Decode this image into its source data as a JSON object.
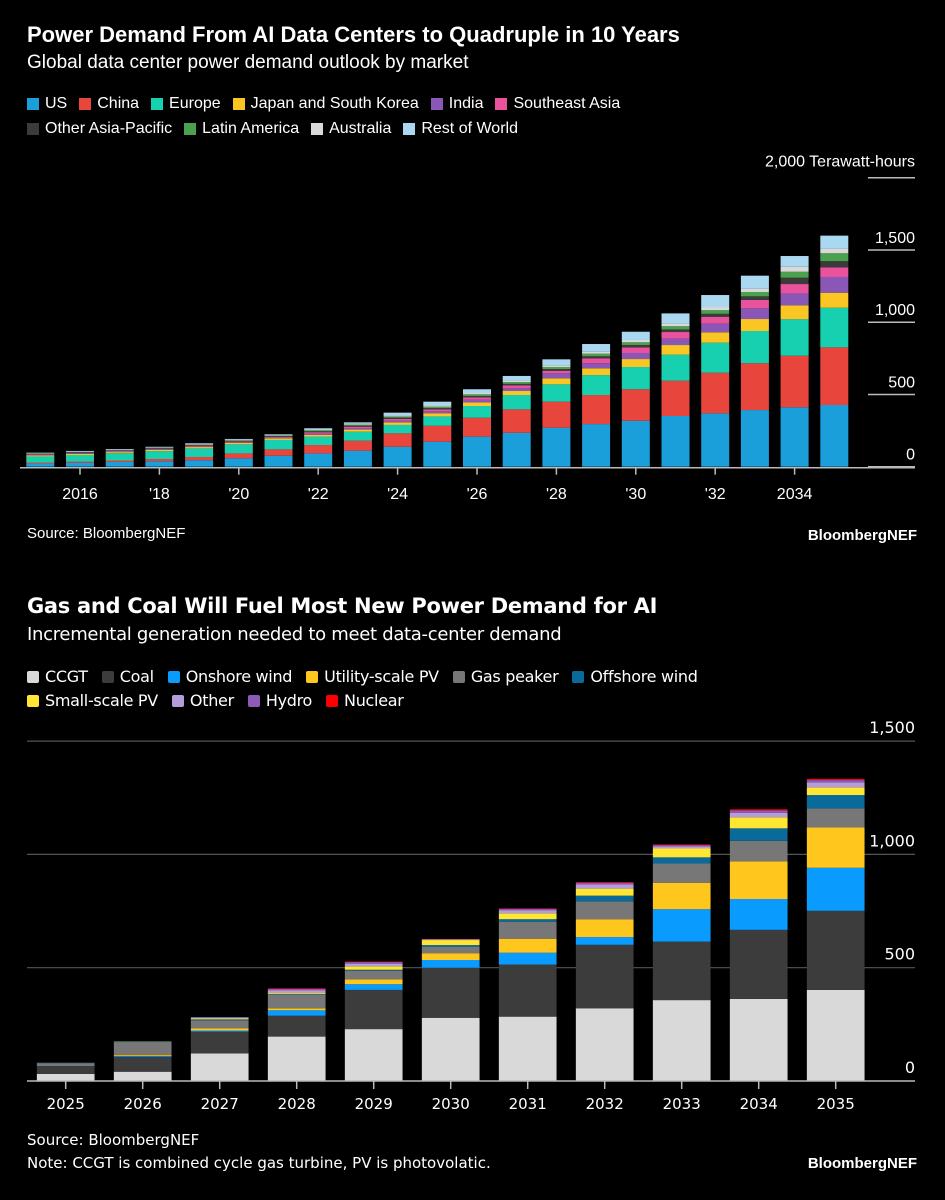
{
  "chart_data": [
    {
      "type": "bar",
      "stacked": true,
      "title": "Power Demand From AI Data Centers to Quadruple in 10 Years",
      "subtitle": "Global data center power demand outlook by market",
      "ylabel": "2,000 Terawatt-hours",
      "ylim": [
        0,
        2000
      ],
      "yticks": [
        "0",
        "500",
        "1,000",
        "1,500"
      ],
      "xticks": [
        "2016",
        "'18",
        "'20",
        "'22",
        "'24",
        "'26",
        "'28",
        "'30",
        "'32",
        "2034"
      ],
      "grid": false,
      "legend_position": "top",
      "categories": [
        2015,
        2016,
        2017,
        2018,
        2019,
        2020,
        2021,
        2022,
        2023,
        2024,
        2025,
        2026,
        2027,
        2028,
        2029,
        2030,
        2031,
        2032,
        2033,
        2034,
        2035
      ],
      "series": [
        {
          "name": "US",
          "color": "#1a9fdb",
          "values": [
            22,
            28,
            33,
            38,
            45,
            58,
            76,
            92,
            111,
            138,
            173,
            208,
            235,
            270,
            295,
            318,
            351,
            369,
            392,
            411,
            427
          ]
        },
        {
          "name": "China",
          "color": "#e8453c",
          "values": [
            7,
            8,
            10,
            15,
            22,
            34,
            44,
            58,
            69,
            93,
            110,
            131,
            162,
            180,
            201,
            218,
            244,
            281,
            324,
            357,
            399
          ]
        },
        {
          "name": "Europe",
          "color": "#17d0b0",
          "values": [
            42,
            45,
            50,
            55,
            60,
            63,
            65,
            58,
            62,
            58,
            65,
            81,
            99,
            120,
            138,
            154,
            180,
            208,
            223,
            252,
            274
          ]
        },
        {
          "name": "Japan and South Korea",
          "color": "#f9c623",
          "values": [
            7,
            8,
            8,
            8,
            9,
            9,
            10,
            13,
            15,
            18,
            22,
            25,
            28,
            42,
            47,
            55,
            67,
            72,
            83,
            97,
            104
          ]
        },
        {
          "name": "India",
          "color": "#8b57b6",
          "values": [
            3,
            4,
            4,
            4,
            5,
            5,
            6,
            9,
            10,
            12,
            13,
            18,
            20,
            34,
            35,
            42,
            44,
            60,
            74,
            82,
            109
          ]
        },
        {
          "name": "Southeast Asia",
          "color": "#e9539e",
          "values": [
            4,
            4,
            4,
            4,
            5,
            5,
            6,
            9,
            10,
            12,
            14,
            16,
            18,
            18,
            34,
            39,
            46,
            48,
            58,
            65,
            67
          ]
        },
        {
          "name": "Other Asia-Pacific",
          "color": "#3b3b3b",
          "values": [
            3,
            3,
            3,
            3,
            4,
            4,
            4,
            6,
            7,
            8,
            9,
            10,
            11,
            12,
            14,
            16,
            18,
            20,
            25,
            44,
            43
          ]
        },
        {
          "name": "Latin America",
          "color": "#4aa24f",
          "values": [
            3,
            3,
            3,
            4,
            4,
            5,
            5,
            7,
            7,
            9,
            10,
            12,
            13,
            14,
            18,
            19,
            22,
            25,
            30,
            41,
            54
          ]
        },
        {
          "name": "Australia",
          "color": "#d9d9d9",
          "values": [
            2,
            2,
            3,
            3,
            3,
            3,
            3,
            5,
            6,
            7,
            8,
            9,
            10,
            12,
            14,
            16,
            20,
            22,
            23,
            35,
            32
          ]
        },
        {
          "name": "Rest of World",
          "color": "#a9d8f0",
          "values": [
            4,
            4,
            4,
            4,
            5,
            6,
            5,
            9,
            10,
            19,
            26,
            26,
            32,
            41,
            53,
            57,
            69,
            83,
            90,
            74,
            90
          ]
        }
      ],
      "source": "Source: BloombergNEF",
      "brand": "BloombergNEF"
    },
    {
      "type": "bar",
      "stacked": true,
      "title": "Gas and Coal Will Fuel Most New Power Demand for AI",
      "subtitle": "Incremental generation needed to meet data-center demand",
      "ylim": [
        0,
        1500
      ],
      "yticks": [
        "0",
        "500",
        "1,000",
        "1,500"
      ],
      "grid": true,
      "legend_position": "top",
      "categories": [
        "2025",
        "2026",
        "2027",
        "2028",
        "2029",
        "2030",
        "2031",
        "2032",
        "2033",
        "2034",
        "2035"
      ],
      "series": [
        {
          "name": "CCGT",
          "color": "#d9d9d9",
          "values": [
            31,
            41,
            122,
            196,
            229,
            279,
            284,
            321,
            357,
            362,
            402
          ]
        },
        {
          "name": "Coal",
          "color": "#3c3c3c",
          "values": [
            35,
            66,
            96,
            92,
            173,
            221,
            230,
            280,
            258,
            305,
            349
          ]
        },
        {
          "name": "Onshore wind",
          "color": "#0a9bff",
          "values": [
            0,
            4,
            5,
            24,
            25,
            34,
            52,
            34,
            143,
            136,
            190
          ]
        },
        {
          "name": "Utility-scale PV",
          "color": "#ffc61e",
          "values": [
            0,
            5,
            10,
            9,
            22,
            30,
            62,
            79,
            117,
            166,
            178
          ]
        },
        {
          "name": "Gas peaker",
          "color": "#777777",
          "values": [
            13,
            56,
            35,
            59,
            38,
            29,
            75,
            79,
            85,
            91,
            84
          ]
        },
        {
          "name": "Offshore wind",
          "color": "#0a6b9a",
          "values": [
            2,
            2,
            4,
            3,
            4,
            7,
            11,
            25,
            27,
            55,
            59
          ]
        },
        {
          "name": "Small-scale PV",
          "color": "#ffe633",
          "values": [
            0,
            1,
            4,
            5,
            15,
            22,
            26,
            31,
            39,
            49,
            34
          ]
        },
        {
          "name": "Other",
          "color": "#b39ddb",
          "values": [
            0,
            0,
            5,
            13,
            12,
            3,
            14,
            18,
            10,
            20,
            22
          ]
        },
        {
          "name": "Hydro",
          "color": "#8e5ab8",
          "values": [
            0,
            0,
            0,
            5,
            7,
            1,
            6,
            8,
            5,
            10,
            10
          ]
        },
        {
          "name": "Nuclear",
          "color": "#ff0000",
          "values": [
            0,
            0,
            0,
            3,
            2,
            1,
            2,
            3,
            3,
            5,
            5
          ]
        }
      ],
      "source": "Source: BloombergNEF",
      "note": "Note: CCGT is combined cycle gas turbine, PV is photovolatic.",
      "brand": "BloombergNEF"
    }
  ]
}
